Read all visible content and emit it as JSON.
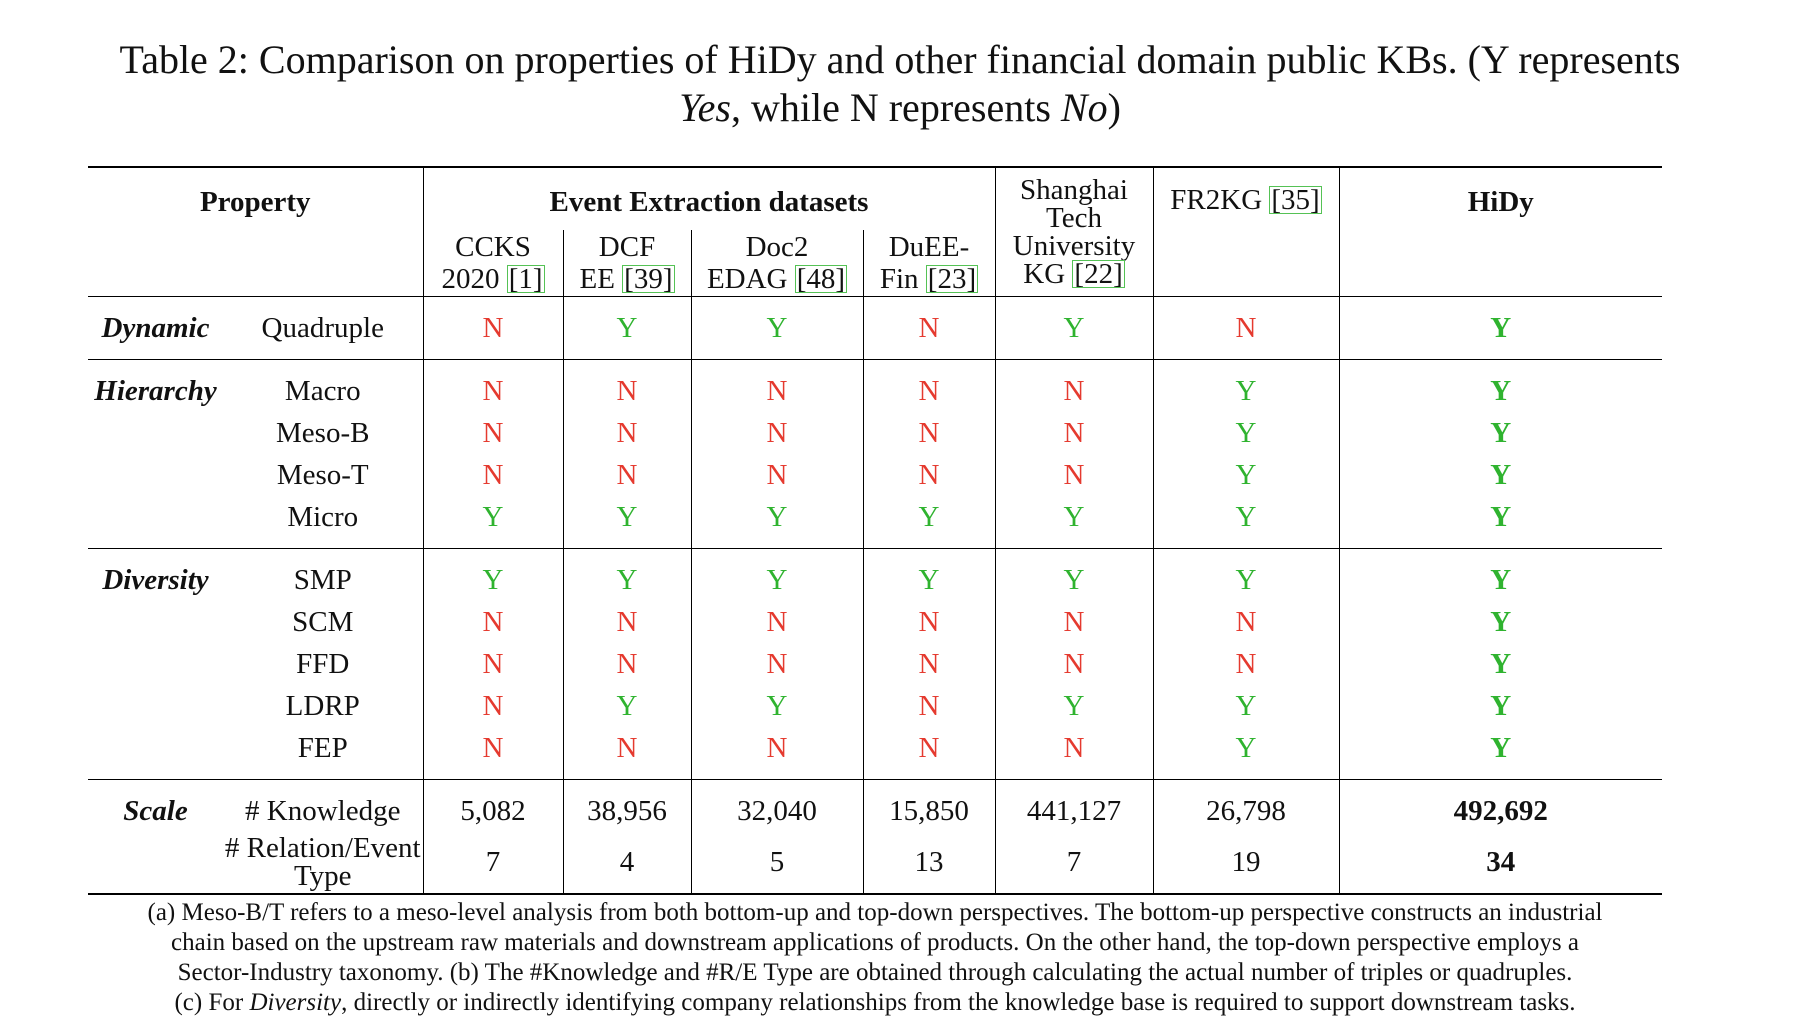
{
  "caption": {
    "line1": "Table 2: Comparison on properties of HiDy and other financial domain public KBs. (Y represents",
    "yes_word": "Yes",
    "middle": ", while N represents ",
    "no_word": "No",
    "end": ")"
  },
  "header": {
    "property": "Property",
    "event_group": "Event Extraction datasets",
    "columns": [
      {
        "line1": "CCKS",
        "line2": "2020 ",
        "cite": "[1]"
      },
      {
        "line1": "DCF",
        "line2": "EE ",
        "cite": "[39]"
      },
      {
        "line1": "Doc2",
        "line2": "EDAG ",
        "cite": "[48]"
      },
      {
        "line1": "DuEE-",
        "line2": "Fin ",
        "cite": "[23]"
      }
    ],
    "shanghai": {
      "line1": "Shanghai",
      "line2": "Tech",
      "line3": "University",
      "line4": "KG ",
      "cite": "[22]"
    },
    "fr2kg": {
      "label": "FR2KG ",
      "cite": "[35]"
    },
    "hidy": "HiDy"
  },
  "groups": {
    "dynamic": {
      "label": "Dynamic",
      "rows": [
        {
          "name": "Quadruple",
          "values": [
            "N",
            "Y",
            "Y",
            "N",
            "Y",
            "N",
            "Y"
          ]
        }
      ]
    },
    "hierarchy": {
      "label": "Hierarchy",
      "rows": [
        {
          "name": "Macro",
          "values": [
            "N",
            "N",
            "N",
            "N",
            "N",
            "Y",
            "Y"
          ]
        },
        {
          "name": "Meso-B",
          "values": [
            "N",
            "N",
            "N",
            "N",
            "N",
            "Y",
            "Y"
          ]
        },
        {
          "name": "Meso-T",
          "values": [
            "N",
            "N",
            "N",
            "N",
            "N",
            "Y",
            "Y"
          ]
        },
        {
          "name": "Micro",
          "values": [
            "Y",
            "Y",
            "Y",
            "Y",
            "Y",
            "Y",
            "Y"
          ]
        }
      ]
    },
    "diversity": {
      "label": "Diversity",
      "rows": [
        {
          "name": "SMP",
          "values": [
            "Y",
            "Y",
            "Y",
            "Y",
            "Y",
            "Y",
            "Y"
          ]
        },
        {
          "name": "SCM",
          "values": [
            "N",
            "N",
            "N",
            "N",
            "N",
            "N",
            "Y"
          ]
        },
        {
          "name": "FFD",
          "values": [
            "N",
            "N",
            "N",
            "N",
            "N",
            "N",
            "Y"
          ]
        },
        {
          "name": "LDRP",
          "values": [
            "N",
            "Y",
            "Y",
            "N",
            "Y",
            "Y",
            "Y"
          ]
        },
        {
          "name": "FEP",
          "values": [
            "N",
            "N",
            "N",
            "N",
            "N",
            "Y",
            "Y"
          ]
        }
      ]
    },
    "scale": {
      "label": "Scale",
      "knowledge": {
        "name": "# Knowledge",
        "values": [
          "5,082",
          "38,956",
          "32,040",
          "15,850",
          "441,127",
          "26,798",
          "492,692"
        ]
      },
      "relation": {
        "name_line1": "# Relation/Event",
        "name_line2": "Type",
        "values": [
          "7",
          "4",
          "5",
          "13",
          "7",
          "19",
          "34"
        ]
      }
    }
  },
  "colors": {
    "yes": "#2fb32f",
    "no": "#e53a2f",
    "citation_box": "#55c255"
  },
  "note": {
    "line1": "(a) Meso-B/T refers to a meso-level analysis from both bottom-up and top-down perspectives. The bottom-up perspective constructs an industrial",
    "line2": "chain based on the upstream raw materials and downstream applications of products. On the other hand, the top-down perspective employs a",
    "line3": "Sector-Industry taxonomy. (b) The #Knowledge and #R/E Type are obtained through calculating the actual number of triples or quadruples.",
    "line4_pre": "(c) For ",
    "line4_em": "Diversity",
    "line4_post": ", directly or indirectly identifying company relationships from the knowledge base is required to support downstream tasks."
  }
}
